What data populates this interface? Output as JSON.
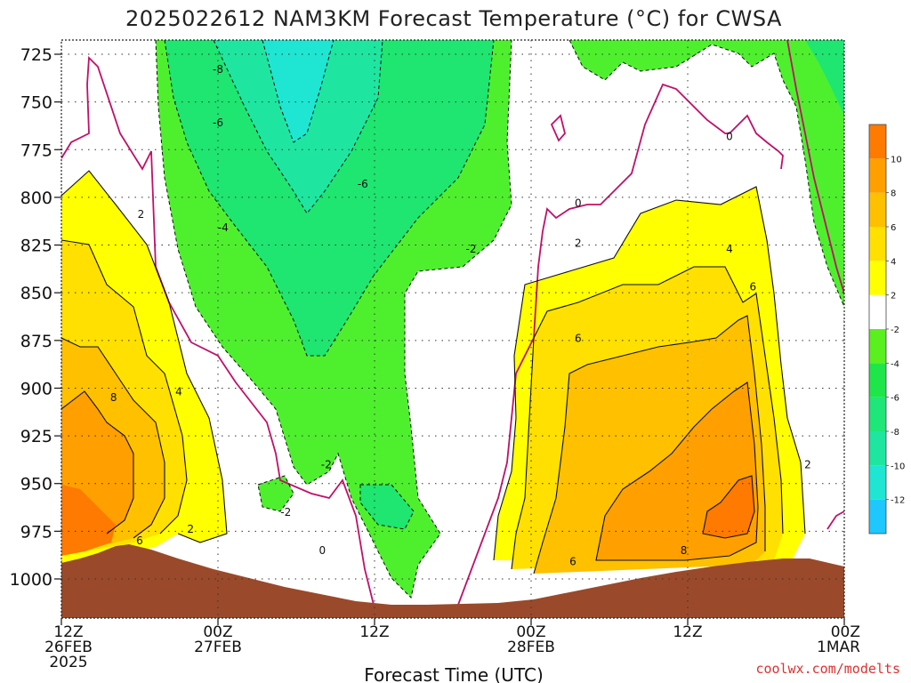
{
  "chart_data": {
    "type": "heatmap",
    "title": "2025022612 NAM3KM Forecast Temperature (°C) for CWSA",
    "xlabel": "Forecast Time (UTC)",
    "ylabel": "",
    "y_ticks": [
      "725",
      "750",
      "775",
      "800",
      "825",
      "850",
      "875",
      "900",
      "925",
      "950",
      "975",
      "1000"
    ],
    "y_values_hpa": [
      725,
      750,
      775,
      800,
      825,
      850,
      875,
      900,
      925,
      950,
      975,
      1000
    ],
    "ylim_hpa": [
      1022,
      720
    ],
    "y_inverted": true,
    "x_ticks": [
      {
        "hour": 0,
        "lines": [
          "12Z",
          "26FEB",
          "2025"
        ]
      },
      {
        "hour": 12,
        "lines": [
          "00Z",
          "27FEB"
        ]
      },
      {
        "hour": 24,
        "lines": [
          "12Z"
        ]
      },
      {
        "hour": 36,
        "lines": [
          "00Z",
          "28FEB"
        ]
      },
      {
        "hour": 48,
        "lines": [
          "12Z"
        ]
      },
      {
        "hour": 60,
        "lines": [
          "00Z",
          "1MAR"
        ]
      }
    ],
    "xlim_hours": [
      0,
      60
    ],
    "grid": true,
    "colorbar": {
      "levels": [
        -14,
        -12,
        -10,
        -8,
        -6,
        -4,
        -2,
        2,
        4,
        6,
        8,
        10,
        12
      ],
      "labels": [
        "-12",
        "-10",
        "-8",
        "-6",
        "-4",
        "-2",
        "2",
        "4",
        "6",
        "8",
        "10"
      ],
      "colors": [
        "#1ec8ff",
        "#1ee6d2",
        "#1ee6a0",
        "#1ee678",
        "#1ee64a",
        "#5aef1e",
        "#ffffff",
        "#ffff00",
        "#ffe000",
        "#ffc000",
        "#ffa000",
        "#ff7a00"
      ]
    },
    "contour_labels": [
      {
        "text": "-8",
        "hour": 12.0,
        "hpa": 733
      },
      {
        "text": "-6",
        "hour": 12.0,
        "hpa": 761
      },
      {
        "text": "-6",
        "hour": 23.1,
        "hpa": 793
      },
      {
        "text": "-4",
        "hour": 12.4,
        "hpa": 816
      },
      {
        "text": "-2",
        "hour": 31.4,
        "hpa": 827
      },
      {
        "text": "-2",
        "hour": 20.3,
        "hpa": 940
      },
      {
        "text": "-2",
        "hour": 17.2,
        "hpa": 965
      },
      {
        "text": "0",
        "hour": 20.0,
        "hpa": 985
      },
      {
        "text": "0",
        "hour": 39.6,
        "hpa": 803
      },
      {
        "text": "0",
        "hour": 51.2,
        "hpa": 768
      },
      {
        "text": "2",
        "hour": 6.1,
        "hpa": 809
      },
      {
        "text": "2",
        "hour": 39.6,
        "hpa": 824
      },
      {
        "text": "2",
        "hour": 9.9,
        "hpa": 974
      },
      {
        "text": "2",
        "hour": 57.2,
        "hpa": 940
      },
      {
        "text": "4",
        "hour": 9.0,
        "hpa": 902
      },
      {
        "text": "4",
        "hour": 51.2,
        "hpa": 827
      },
      {
        "text": "6",
        "hour": 6.0,
        "hpa": 980
      },
      {
        "text": "6",
        "hour": 53.0,
        "hpa": 847
      },
      {
        "text": "6",
        "hour": 39.6,
        "hpa": 874
      },
      {
        "text": "6",
        "hour": 39.2,
        "hpa": 991
      },
      {
        "text": "8",
        "hour": 4.0,
        "hpa": 905
      },
      {
        "text": "8",
        "hour": 47.7,
        "hpa": 985
      }
    ],
    "terrain_color": "#9a4a2a",
    "zero_line_color": "#c0106a"
  },
  "credit": "coolwx.com/modelts"
}
